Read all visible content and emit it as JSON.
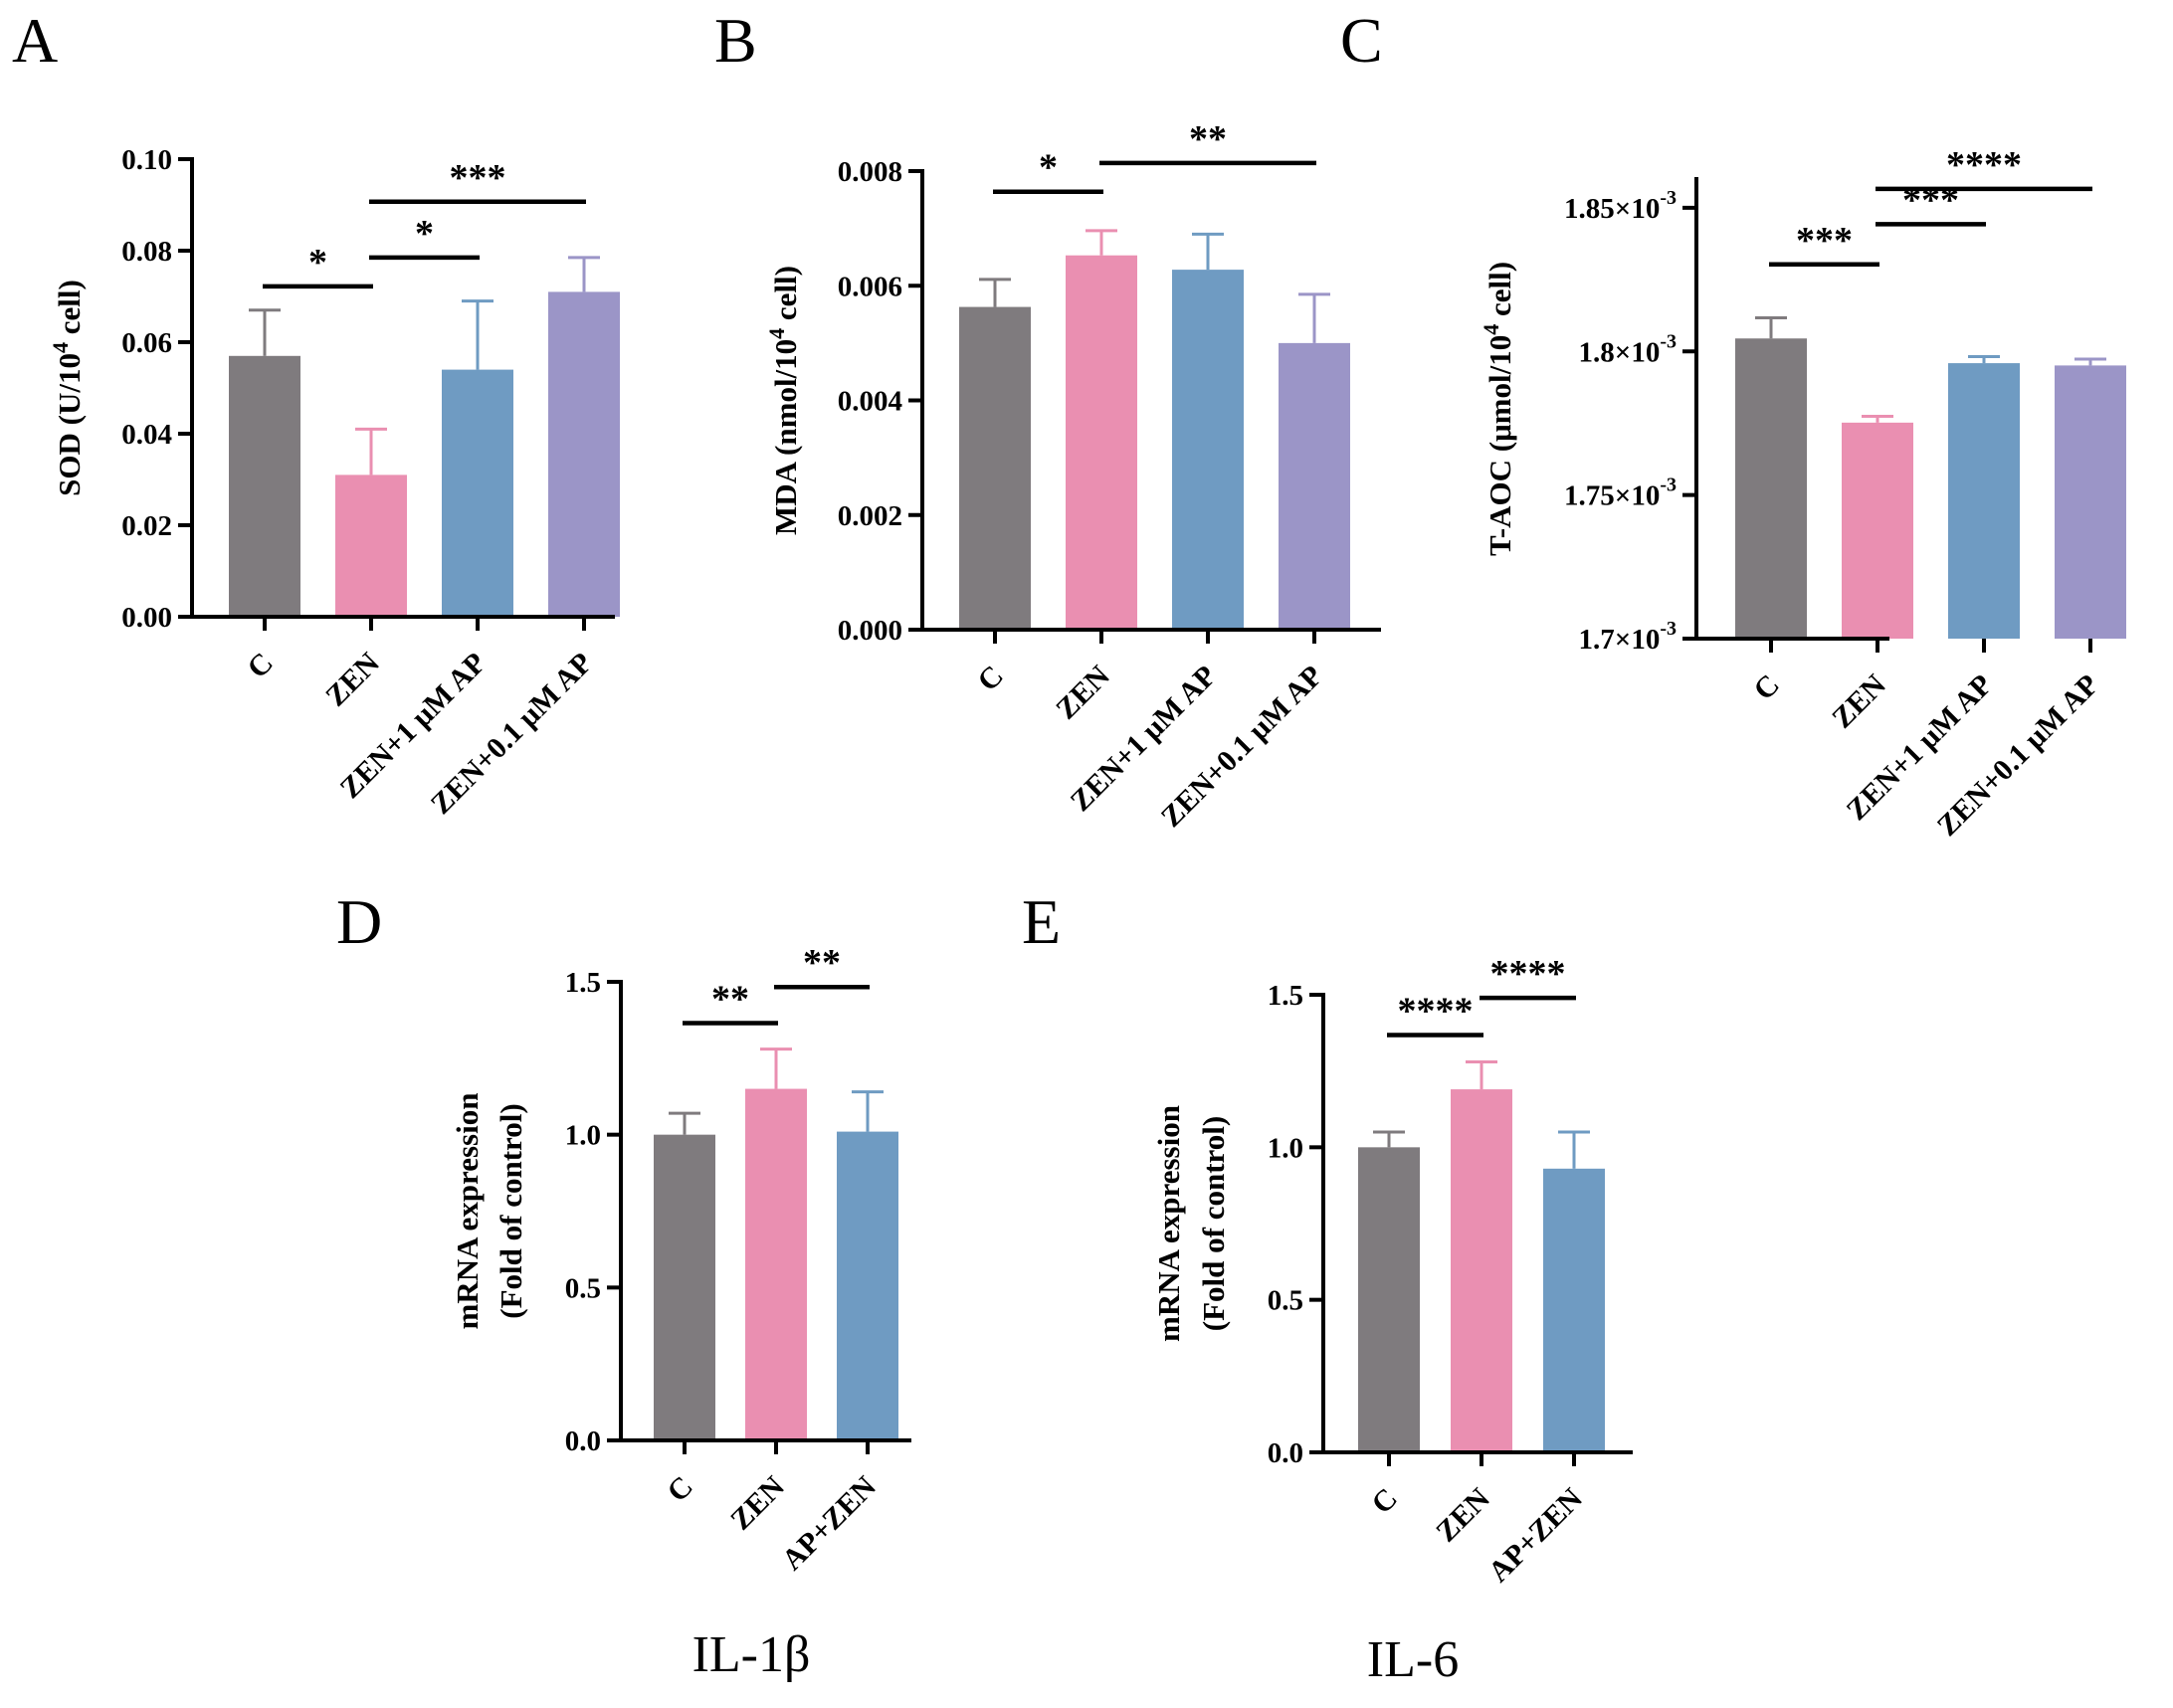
{
  "figure": {
    "colors": {
      "C": "#7f7b7e",
      "ZEN": "#ea8fb1",
      "AP1": "#6f9bc2",
      "AP01": "#9b95c7",
      "axis": "#000000"
    }
  },
  "chart_data": [
    {
      "id": "A",
      "panel_label": "A",
      "type": "bar",
      "ylabel": "SOD (U/10",
      "ylabel_sup": "4",
      "ylabel_tail": " cell)",
      "categories": [
        "C",
        "ZEN",
        "ZEN+1 μM AP",
        "ZEN+0.1 μM AP"
      ],
      "values": [
        0.057,
        0.031,
        0.054,
        0.071
      ],
      "errors": [
        0.01,
        0.01,
        0.015,
        0.0075
      ],
      "ylim": [
        0,
        0.1
      ],
      "ticks": [
        0,
        0.02,
        0.04,
        0.06,
        0.08,
        0.1
      ],
      "tick_labels": [
        "0.00",
        "0.02",
        "0.04",
        "0.06",
        "0.08",
        "0.10"
      ],
      "significance": [
        {
          "from": 0,
          "to": 1,
          "y": 0.0722,
          "text": "*"
        },
        {
          "from": 1,
          "to": 2,
          "y": 0.0785,
          "text": "*"
        },
        {
          "from": 1,
          "to": 3,
          "y": 0.0907,
          "text": "***"
        }
      ]
    },
    {
      "id": "B",
      "panel_label": "B",
      "type": "bar",
      "ylabel": "MDA (nmol/10",
      "ylabel_sup": "4",
      "ylabel_tail": " cell)",
      "categories": [
        "C",
        "ZEN",
        "ZEN+1 μM AP",
        "ZEN+0.1 μM AP"
      ],
      "values": [
        0.00563,
        0.00653,
        0.00628,
        0.005
      ],
      "errors": [
        0.00048,
        0.00043,
        0.00062,
        0.00085
      ],
      "ylim": [
        0,
        0.008
      ],
      "ticks": [
        0,
        0.002,
        0.004,
        0.006,
        0.008
      ],
      "tick_labels": [
        "0.000",
        "0.002",
        "0.004",
        "0.006",
        "0.008"
      ],
      "significance": [
        {
          "from": 0,
          "to": 1,
          "y": 0.00764,
          "text": "*"
        },
        {
          "from": 1,
          "to": 3,
          "y": 0.00814,
          "text": "**"
        }
      ]
    },
    {
      "id": "C",
      "panel_label": "C",
      "type": "bar",
      "ylabel": "T-AOC (μmol/10",
      "ylabel_sup": "4",
      "ylabel_tail": " cell)",
      "categories": [
        "C",
        "ZEN",
        "ZEN+1 μM AP",
        "ZEN+0.1 μM AP"
      ],
      "values": [
        0.0018045,
        0.0017752,
        0.0017959,
        0.0017951
      ],
      "errors": [
        7.2e-06,
        2.2e-06,
        2.3e-06,
        2.2e-06
      ],
      "ylim": [
        0.0017,
        0.00186
      ],
      "ticks": [
        0.0017,
        0.00175,
        0.0018,
        0.00185
      ],
      "tick_labels": [
        "1.7×10",
        "1.75×10",
        "1.8×10",
        "1.85×10"
      ],
      "tick_sup": "-3",
      "significance": [
        {
          "from": 0,
          "to": 1,
          "y": 0.0018303,
          "text": "***"
        },
        {
          "from": 1,
          "to": 2,
          "y": 0.0018443,
          "text": "***"
        },
        {
          "from": 1,
          "to": 3,
          "y": 0.0018566,
          "text": "****"
        }
      ]
    },
    {
      "id": "D",
      "panel_label": "D",
      "type": "bar",
      "ylabel": "mRNA expression",
      "ylabel2": "(Fold of control)",
      "gene": "IL-1β",
      "categories": [
        "C",
        "ZEN",
        "AP+ZEN"
      ],
      "values": [
        1.0,
        1.15,
        1.01
      ],
      "errors": [
        0.07,
        0.13,
        0.13
      ],
      "ylim": [
        0,
        1.5
      ],
      "ticks": [
        0,
        0.5,
        1.0,
        1.5
      ],
      "tick_labels": [
        "0.0",
        "0.5",
        "1.0",
        "1.5"
      ],
      "significance": [
        {
          "from": 0,
          "to": 1,
          "y": 1.365,
          "text": "**"
        },
        {
          "from": 1,
          "to": 2,
          "y": 1.483,
          "text": "**"
        }
      ]
    },
    {
      "id": "E",
      "panel_label": "E",
      "type": "bar",
      "ylabel": "mRNA expression",
      "ylabel2": "(Fold of control)",
      "gene": "IL-6",
      "categories": [
        "C",
        "ZEN",
        "AP+ZEN"
      ],
      "values": [
        1.0,
        1.19,
        0.93
      ],
      "errors": [
        0.05,
        0.09,
        0.12
      ],
      "ylim": [
        0,
        1.5
      ],
      "ticks": [
        0,
        0.5,
        1.0,
        1.5
      ],
      "tick_labels": [
        "0.0",
        "0.5",
        "1.0",
        "1.5"
      ],
      "significance": [
        {
          "from": 0,
          "to": 1,
          "y": 1.368,
          "text": "****"
        },
        {
          "from": 1,
          "to": 2,
          "y": 1.49,
          "text": "****"
        }
      ]
    }
  ]
}
